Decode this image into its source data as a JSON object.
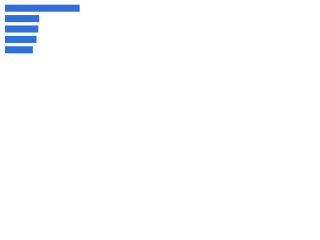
{
  "chart_data": {
    "type": "bar",
    "orientation": "horizontal",
    "values": [
      83,
      38,
      37,
      35,
      31
    ],
    "color": "#2e6fd9",
    "xlim": [
      0,
      100
    ]
  }
}
